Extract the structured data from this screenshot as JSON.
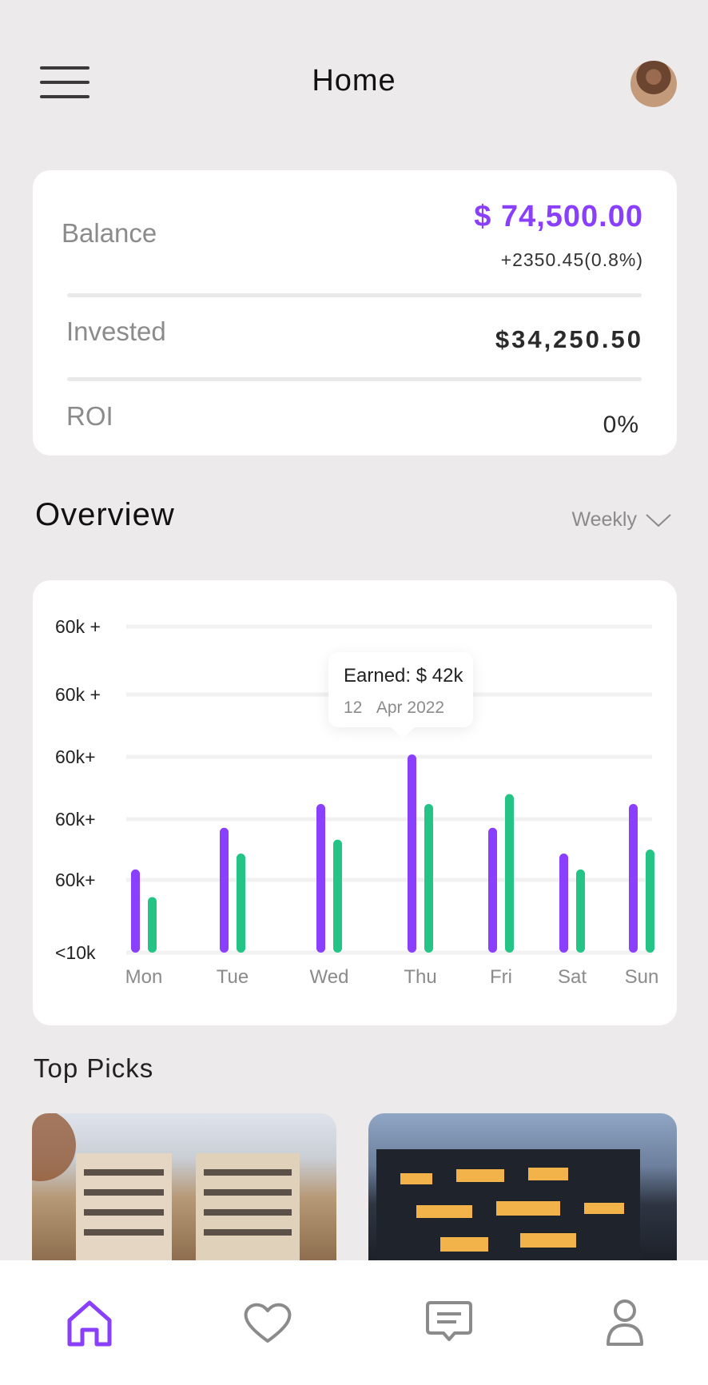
{
  "header": {
    "title": "Home"
  },
  "balance": {
    "label": "Balance",
    "value": "$ 74,500.00",
    "change": "+2350.45",
    "change_pct": "(0.8%)",
    "invested_label": "Invested",
    "invested_value": "$34,250.50",
    "roi_label": "ROI",
    "roi_value": "0%"
  },
  "overview": {
    "title": "Overview",
    "period": "Weekly"
  },
  "chart_data": {
    "type": "bar",
    "y_tick_labels": [
      "60k +",
      "60k +",
      "60k+",
      "60k+",
      "60k+",
      "<10k"
    ],
    "categories": [
      "Mon",
      "Tue",
      "Wed",
      "Thu",
      "Fri",
      "Sat",
      "Sun"
    ],
    "series": [
      {
        "values": [
          0.42,
          0.63,
          0.75,
          1.0,
          0.63,
          0.5,
          0.75
        ]
      },
      {
        "values": [
          0.28,
          0.5,
          0.57,
          0.75,
          0.8,
          0.42,
          0.52
        ]
      }
    ],
    "colors": [
      "#8a3ffc",
      "#23c486"
    ],
    "grid": true,
    "tooltip": {
      "title": "Earned: $ 42k",
      "day": "12",
      "date": "Apr 2022"
    }
  },
  "top_picks": {
    "title": "Top Picks"
  },
  "nav": {
    "active_color": "#8a3ffc",
    "items": [
      "home-icon",
      "heart-icon",
      "chat-icon",
      "profile-icon"
    ]
  }
}
